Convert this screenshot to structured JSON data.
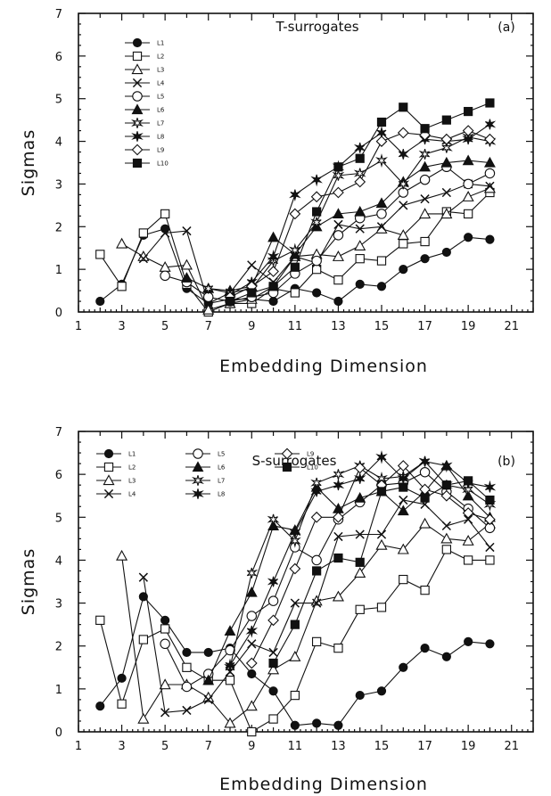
{
  "chart_data": [
    {
      "type": "line",
      "title": "T-surrogates",
      "panel_label": "(a)",
      "xlabel": "Embedding Dimension",
      "ylabel": "Sigmas",
      "xlim": [
        1,
        22
      ],
      "ylim": [
        0,
        7
      ],
      "xticks": [
        "1",
        "3",
        "5",
        "7",
        "9",
        "11",
        "13",
        "15",
        "17",
        "19",
        "21"
      ],
      "yticks": [
        "0",
        "1",
        "2",
        "3",
        "4",
        "5",
        "6",
        "7"
      ],
      "legend_position": "top-left, single column",
      "series": [
        {
          "name": "L1",
          "marker": "filled-circle",
          "x": [
            2,
            3,
            4,
            5,
            6,
            7,
            8,
            9,
            10,
            11,
            12,
            13,
            14,
            15,
            16,
            17,
            18,
            19,
            20
          ],
          "y": [
            0.25,
            0.65,
            1.8,
            1.95,
            0.55,
            0.2,
            0.3,
            0.3,
            0.25,
            0.55,
            0.45,
            0.25,
            0.65,
            0.6,
            1.0,
            1.25,
            1.4,
            1.75,
            1.7
          ]
        },
        {
          "name": "L2",
          "marker": "open-square",
          "x": [
            2,
            3,
            4,
            5,
            6,
            7,
            8,
            9,
            10,
            11,
            12,
            13,
            14,
            15,
            16,
            17,
            18,
            19,
            20
          ],
          "y": [
            1.35,
            0.6,
            1.85,
            2.3,
            0.65,
            0.0,
            0.2,
            0.2,
            0.55,
            0.45,
            1.0,
            0.75,
            1.25,
            1.2,
            1.6,
            1.65,
            2.35,
            2.3,
            2.8
          ]
        },
        {
          "name": "L3",
          "marker": "open-triangle",
          "x": [
            3,
            4,
            5,
            6,
            7,
            8,
            9,
            10,
            11,
            12,
            13,
            14,
            15,
            16,
            17,
            18,
            19,
            20
          ],
          "y": [
            1.6,
            1.3,
            1.05,
            1.1,
            0.05,
            0.2,
            0.3,
            0.6,
            1.3,
            1.35,
            1.3,
            1.55,
            1.95,
            1.8,
            2.3,
            2.3,
            2.7,
            2.9
          ]
        },
        {
          "name": "L4",
          "marker": "x-cross",
          "x": [
            4,
            5,
            6,
            7,
            8,
            9,
            10,
            11,
            12,
            13,
            14,
            15,
            16,
            17,
            18,
            19,
            20
          ],
          "y": [
            1.25,
            1.85,
            1.9,
            0.2,
            0.45,
            1.1,
            0.7,
            1.3,
            1.15,
            2.05,
            1.95,
            2.0,
            2.5,
            2.65,
            2.8,
            3.0,
            2.95
          ]
        },
        {
          "name": "L5",
          "marker": "open-circle",
          "x": [
            5,
            6,
            7,
            8,
            9,
            10,
            11,
            12,
            13,
            14,
            15,
            16,
            17,
            18,
            19,
            20
          ],
          "y": [
            0.85,
            0.7,
            0.35,
            0.25,
            0.35,
            0.45,
            0.9,
            1.2,
            1.8,
            2.2,
            2.3,
            2.8,
            3.1,
            3.4,
            3.0,
            3.25
          ]
        },
        {
          "name": "L6",
          "marker": "filled-triangle",
          "x": [
            6,
            7,
            8,
            9,
            10,
            11,
            12,
            13,
            14,
            15,
            16,
            17,
            18,
            19,
            20
          ],
          "y": [
            0.8,
            0.55,
            0.5,
            0.6,
            1.75,
            1.35,
            2.0,
            2.3,
            2.35,
            2.55,
            3.05,
            3.4,
            3.5,
            3.55,
            3.5
          ]
        },
        {
          "name": "L7",
          "marker": "open-star",
          "x": [
            7,
            8,
            9,
            10,
            11,
            12,
            13,
            14,
            15,
            16,
            17,
            18,
            19,
            20
          ],
          "y": [
            0.55,
            0.45,
            0.55,
            1.2,
            1.45,
            2.1,
            3.2,
            3.25,
            3.55,
            3.0,
            3.7,
            3.85,
            4.1,
            4.0
          ]
        },
        {
          "name": "L8",
          "marker": "filled-star",
          "x": [
            8,
            9,
            10,
            11,
            12,
            13,
            14,
            15,
            16,
            17,
            18,
            19,
            20
          ],
          "y": [
            0.4,
            0.7,
            1.3,
            2.75,
            3.1,
            3.4,
            3.85,
            4.2,
            3.7,
            4.05,
            4.0,
            4.05,
            4.4
          ]
        },
        {
          "name": "L9",
          "marker": "open-diamond",
          "x": [
            8,
            9,
            10,
            11,
            12,
            13,
            14,
            15,
            16,
            17,
            18,
            19,
            20
          ],
          "y": [
            0.35,
            0.6,
            0.95,
            2.3,
            2.7,
            2.8,
            3.05,
            4.0,
            4.2,
            4.15,
            4.05,
            4.25,
            4.05
          ]
        },
        {
          "name": "L10",
          "marker": "filled-square",
          "x": [
            8,
            9,
            10,
            11,
            12,
            13,
            14,
            15,
            16,
            17,
            18,
            19,
            20
          ],
          "y": [
            0.25,
            0.45,
            0.6,
            1.05,
            2.35,
            3.4,
            3.6,
            4.45,
            4.8,
            4.3,
            4.5,
            4.7,
            4.9
          ]
        }
      ]
    },
    {
      "type": "line",
      "title": "S-surrogates",
      "panel_label": "(b)",
      "xlabel": "Embedding Dimension",
      "ylabel": "Sigmas",
      "xlim": [
        1,
        22
      ],
      "ylim": [
        0,
        7
      ],
      "xticks": [
        "1",
        "3",
        "5",
        "7",
        "9",
        "11",
        "13",
        "15",
        "17",
        "19",
        "21"
      ],
      "yticks": [
        "0",
        "1",
        "2",
        "3",
        "4",
        "5",
        "6",
        "7"
      ],
      "legend_position": "top-left, three columns",
      "series": [
        {
          "name": "L1",
          "marker": "filled-circle",
          "x": [
            2,
            3,
            4,
            5,
            6,
            7,
            8,
            9,
            10,
            11,
            12,
            13,
            14,
            15,
            16,
            17,
            18,
            19,
            20
          ],
          "y": [
            0.6,
            1.25,
            3.15,
            2.6,
            1.85,
            1.85,
            1.95,
            1.35,
            0.95,
            0.15,
            0.2,
            0.15,
            0.85,
            0.95,
            1.5,
            1.95,
            1.75,
            2.1,
            2.05
          ]
        },
        {
          "name": "L2",
          "marker": "open-square",
          "x": [
            2,
            3,
            4,
            5,
            6,
            7,
            8,
            9,
            10,
            11,
            12,
            13,
            14,
            15,
            16,
            17,
            18,
            19,
            20
          ],
          "y": [
            2.6,
            0.65,
            2.15,
            2.4,
            1.5,
            1.2,
            1.2,
            0.0,
            0.3,
            0.85,
            2.1,
            1.95,
            2.85,
            2.9,
            3.55,
            3.3,
            4.25,
            4.0,
            4.0
          ]
        },
        {
          "name": "L3",
          "marker": "open-triangle",
          "x": [
            3,
            4,
            5,
            6,
            7,
            8,
            9,
            10,
            11,
            12,
            13,
            14,
            15,
            16,
            17,
            18,
            19,
            20
          ],
          "y": [
            4.1,
            0.3,
            1.1,
            1.1,
            0.8,
            0.2,
            0.6,
            1.45,
            1.75,
            3.05,
            3.15,
            3.7,
            4.35,
            4.25,
            4.85,
            4.5,
            4.45,
            4.85
          ]
        },
        {
          "name": "L4",
          "marker": "x-cross",
          "x": [
            4,
            5,
            6,
            7,
            8,
            9,
            10,
            11,
            12,
            13,
            14,
            15,
            16,
            17,
            18,
            19,
            20
          ],
          "y": [
            3.6,
            0.45,
            0.5,
            0.75,
            1.4,
            2.05,
            1.85,
            3.0,
            3.0,
            4.55,
            4.6,
            4.6,
            5.4,
            5.3,
            4.8,
            4.95,
            4.3
          ]
        },
        {
          "name": "L5",
          "marker": "open-circle",
          "x": [
            5,
            6,
            7,
            8,
            9,
            10,
            11,
            12,
            13,
            14,
            15,
            16,
            17,
            18,
            19,
            20
          ],
          "y": [
            2.05,
            1.05,
            1.35,
            1.9,
            2.7,
            3.05,
            4.3,
            4.0,
            4.95,
            5.35,
            5.75,
            5.8,
            6.05,
            5.6,
            5.2,
            4.75
          ]
        },
        {
          "name": "L6",
          "marker": "filled-triangle",
          "x": [
            7,
            8,
            9,
            10,
            11,
            12,
            13,
            14,
            15,
            16,
            17,
            18,
            19,
            20
          ],
          "y": [
            1.2,
            2.35,
            3.25,
            4.8,
            4.7,
            5.7,
            5.2,
            5.45,
            5.6,
            5.15,
            5.6,
            6.2,
            5.5,
            5.0
          ]
        },
        {
          "name": "L7",
          "marker": "open-star",
          "x": [
            8,
            9,
            10,
            11,
            12,
            13,
            14,
            15,
            16,
            17,
            18,
            19,
            20
          ],
          "y": [
            1.5,
            3.7,
            4.95,
            4.45,
            5.8,
            6.0,
            6.2,
            5.9,
            5.95,
            6.3,
            5.75,
            5.65,
            5.3
          ]
        },
        {
          "name": "L8",
          "marker": "filled-star",
          "x": [
            8,
            9,
            10,
            11,
            12,
            13,
            14,
            15,
            16,
            17,
            18,
            19,
            20
          ],
          "y": [
            1.55,
            2.35,
            3.5,
            4.65,
            5.6,
            5.75,
            5.9,
            6.4,
            5.9,
            6.3,
            6.2,
            5.8,
            5.7
          ]
        },
        {
          "name": "L9",
          "marker": "open-diamond",
          "x": [
            9,
            10,
            11,
            12,
            13,
            14,
            15,
            16,
            17,
            18,
            19,
            20
          ],
          "y": [
            1.6,
            2.6,
            3.8,
            5.0,
            5.0,
            6.15,
            5.75,
            6.2,
            5.65,
            5.5,
            5.1,
            4.95
          ]
        },
        {
          "name": "L10",
          "marker": "filled-square",
          "x": [
            10,
            11,
            12,
            13,
            14,
            15,
            16,
            17,
            18,
            19,
            20
          ],
          "y": [
            1.6,
            2.5,
            3.75,
            4.05,
            3.95,
            5.6,
            5.7,
            5.45,
            5.75,
            5.85,
            5.4
          ]
        }
      ]
    }
  ]
}
